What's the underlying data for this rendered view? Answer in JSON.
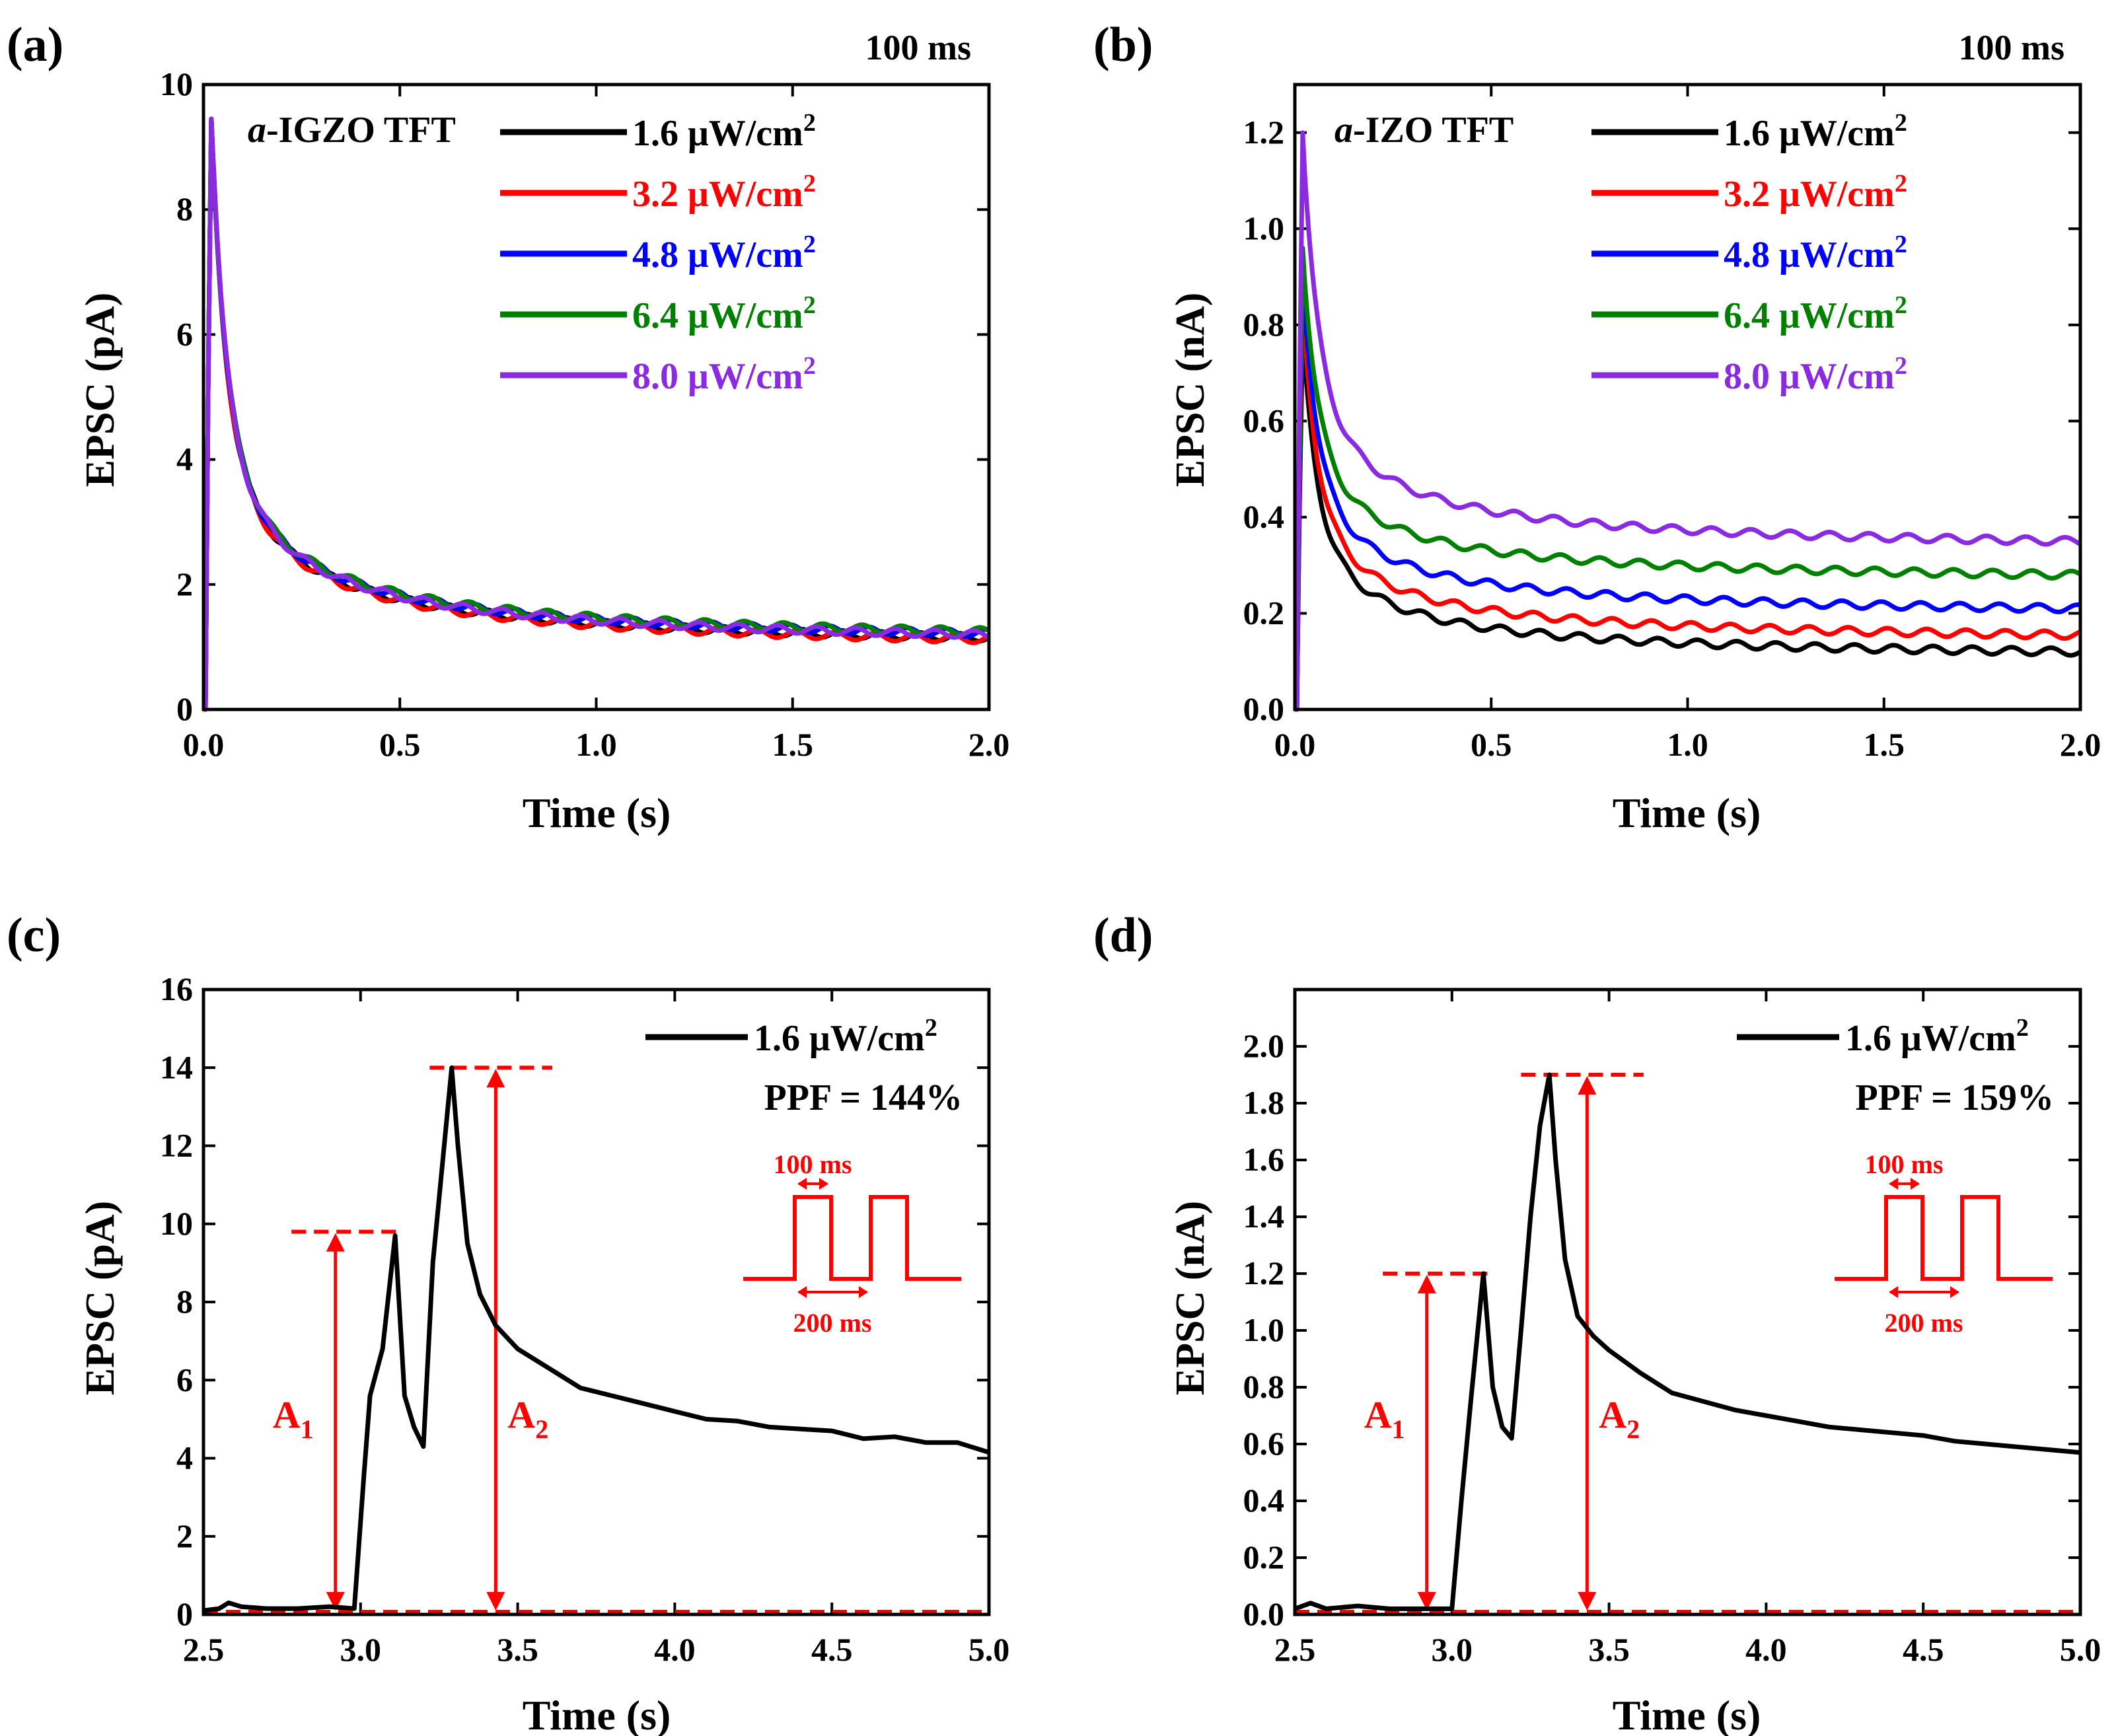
{
  "colors": {
    "black": "#000000",
    "red": "#ff0000",
    "blue": "#0000ff",
    "green": "#008000",
    "purple": "#8a2be2",
    "annotation_red": "#ff0000"
  },
  "chart_data": [
    {
      "panel_label": "(a)",
      "type": "line",
      "title": "",
      "corner_note": "100 ms",
      "device_label_italic": "a",
      "device_label_rest": "-IGZO TFT",
      "xlabel": "Time  (s)",
      "ylabel": "EPSC (pA)",
      "xlim": [
        0,
        2.0
      ],
      "ylim": [
        0,
        10
      ],
      "xticks": [
        0.0,
        0.5,
        1.0,
        1.5,
        2.0
      ],
      "xtick_labels": [
        "0.0",
        "0.5",
        "1.0",
        "1.5",
        "2.0"
      ],
      "yticks": [
        0,
        2,
        4,
        6,
        8,
        10
      ],
      "ytick_labels": [
        "0",
        "2",
        "4",
        "6",
        "8",
        "10"
      ],
      "legend_position": "top-right",
      "legend_units": "μW/cm",
      "legend_exponent": "2",
      "series": [
        {
          "name": "1.6",
          "color": "#000000",
          "peak_time": 0.02,
          "peak": 9.45,
          "tail_2s": 1.15
        },
        {
          "name": "3.2",
          "color": "#ff0000",
          "peak_time": 0.02,
          "peak": 9.45,
          "tail_2s": 1.12
        },
        {
          "name": "4.8",
          "color": "#0000ff",
          "peak_time": 0.02,
          "peak": 9.45,
          "tail_2s": 1.22
        },
        {
          "name": "6.4",
          "color": "#008000",
          "peak_time": 0.02,
          "peak": 9.45,
          "tail_2s": 1.25
        },
        {
          "name": "8.0",
          "color": "#8a2be2",
          "peak_time": 0.02,
          "peak": 9.45,
          "tail_2s": 1.2
        }
      ]
    },
    {
      "panel_label": "(b)",
      "type": "line",
      "title": "",
      "corner_note": "100 ms",
      "device_label_italic": "a",
      "device_label_rest": "-IZO TFT",
      "xlabel": "Time  (s)",
      "ylabel": "EPSC (nA)",
      "xlim": [
        0,
        2.0
      ],
      "ylim": [
        0,
        1.3
      ],
      "xticks": [
        0.0,
        0.5,
        1.0,
        1.5,
        2.0
      ],
      "xtick_labels": [
        "0.0",
        "0.5",
        "1.0",
        "1.5",
        "2.0"
      ],
      "yticks": [
        0.0,
        0.2,
        0.4,
        0.6,
        0.8,
        1.0,
        1.2
      ],
      "ytick_labels": [
        "0.0",
        "0.2",
        "0.4",
        "0.6",
        "0.8",
        "1.0",
        "1.2"
      ],
      "legend_position": "top-right",
      "legend_units": "μW/cm",
      "legend_exponent": "2",
      "series": [
        {
          "name": "1.6",
          "color": "#000000",
          "peak_time": 0.02,
          "peak": 0.78,
          "tail_2s": 0.12
        },
        {
          "name": "3.2",
          "color": "#ff0000",
          "peak_time": 0.02,
          "peak": 0.84,
          "tail_2s": 0.155
        },
        {
          "name": "4.8",
          "color": "#0000ff",
          "peak_time": 0.02,
          "peak": 0.9,
          "tail_2s": 0.21
        },
        {
          "name": "6.4",
          "color": "#008000",
          "peak_time": 0.02,
          "peak": 0.96,
          "tail_2s": 0.28
        },
        {
          "name": "8.0",
          "color": "#8a2be2",
          "peak_time": 0.02,
          "peak": 1.2,
          "tail_2s": 0.35
        }
      ]
    },
    {
      "panel_label": "(c)",
      "type": "line",
      "title": "",
      "xlabel": "Time  (s)",
      "ylabel": "EPSC (pA)",
      "xlim": [
        2.5,
        5.0
      ],
      "ylim": [
        0,
        16
      ],
      "xticks": [
        2.5,
        3.0,
        3.5,
        4.0,
        4.5,
        5.0
      ],
      "xtick_labels": [
        "2.5",
        "3.0",
        "3.5",
        "4.0",
        "4.5",
        "5.0"
      ],
      "yticks": [
        0,
        2,
        4,
        6,
        8,
        10,
        12,
        14,
        16
      ],
      "ytick_labels": [
        "0",
        "2",
        "4",
        "6",
        "8",
        "10",
        "12",
        "14",
        "16"
      ],
      "legend_position": "top-right",
      "legend_label": "1.6 μW/cm",
      "legend_exponent": "2",
      "ppf_text": "PPF = 144%",
      "A1": 9.8,
      "A2": 14.0,
      "A1_label": "A",
      "A1_sub": "1",
      "A2_label": "A",
      "A2_sub": "2",
      "pulse_width_label": "100 ms",
      "pulse_interval_label": "200 ms",
      "series": [
        {
          "name": "1.6 μW/cm2",
          "color": "#000000",
          "x": [
            2.5,
            2.55,
            2.58,
            2.62,
            2.7,
            2.8,
            2.9,
            2.98,
            3.01,
            3.03,
            3.07,
            3.11,
            3.14,
            3.17,
            3.2,
            3.23,
            3.26,
            3.29,
            3.31,
            3.34,
            3.38,
            3.43,
            3.5,
            3.6,
            3.7,
            3.8,
            3.9,
            4.0,
            4.1,
            4.2,
            4.3,
            4.4,
            4.5,
            4.6,
            4.7,
            4.8,
            4.9,
            5.0
          ],
          "y": [
            0.1,
            0.15,
            0.3,
            0.2,
            0.15,
            0.15,
            0.2,
            0.15,
            3.5,
            5.6,
            6.8,
            9.7,
            5.6,
            4.8,
            4.3,
            9.0,
            11.5,
            14.0,
            12.0,
            9.5,
            8.2,
            7.4,
            6.8,
            6.3,
            5.8,
            5.6,
            5.4,
            5.2,
            5.0,
            4.95,
            4.8,
            4.75,
            4.7,
            4.5,
            4.55,
            4.4,
            4.4,
            4.15
          ]
        }
      ]
    },
    {
      "panel_label": "(d)",
      "type": "line",
      "title": "",
      "xlabel": "Time  (s)",
      "ylabel": "EPSC (nA)",
      "xlim": [
        2.5,
        5.0
      ],
      "ylim": [
        0,
        2.2
      ],
      "xticks": [
        2.5,
        3.0,
        3.5,
        4.0,
        4.5,
        5.0
      ],
      "xtick_labels": [
        "2.5",
        "3.0",
        "3.5",
        "4.0",
        "4.5",
        "5.0"
      ],
      "yticks": [
        0.0,
        0.2,
        0.4,
        0.6,
        0.8,
        1.0,
        1.2,
        1.4,
        1.6,
        1.8,
        2.0
      ],
      "ytick_labels": [
        "0.0",
        "0.2",
        "0.4",
        "0.6",
        "0.8",
        "1.0",
        "1.2",
        "1.4",
        "1.6",
        "1.8",
        "2.0"
      ],
      "legend_position": "top-right",
      "legend_label": "1.6 μW/cm",
      "legend_exponent": "2",
      "ppf_text": "PPF = 159%",
      "A1": 1.2,
      "A2": 1.9,
      "A1_label": "A",
      "A1_sub": "1",
      "A2_label": "A",
      "A2_sub": "2",
      "pulse_width_label": "100 ms",
      "pulse_interval_label": "200 ms",
      "series": [
        {
          "name": "1.6 μW/cm2",
          "color": "#000000",
          "x": [
            2.5,
            2.55,
            2.6,
            2.7,
            2.8,
            2.9,
            3.0,
            3.03,
            3.06,
            3.1,
            3.13,
            3.16,
            3.19,
            3.22,
            3.25,
            3.28,
            3.31,
            3.33,
            3.36,
            3.4,
            3.45,
            3.5,
            3.6,
            3.7,
            3.8,
            3.9,
            4.0,
            4.1,
            4.2,
            4.3,
            4.4,
            4.5,
            4.6,
            4.7,
            4.8,
            4.9,
            5.0
          ],
          "y": [
            0.02,
            0.04,
            0.02,
            0.03,
            0.02,
            0.02,
            0.02,
            0.4,
            0.75,
            1.2,
            0.8,
            0.66,
            0.62,
            1.0,
            1.4,
            1.72,
            1.9,
            1.6,
            1.25,
            1.05,
            0.98,
            0.93,
            0.85,
            0.78,
            0.75,
            0.72,
            0.7,
            0.68,
            0.66,
            0.65,
            0.64,
            0.63,
            0.61,
            0.6,
            0.59,
            0.58,
            0.57
          ]
        }
      ]
    }
  ]
}
